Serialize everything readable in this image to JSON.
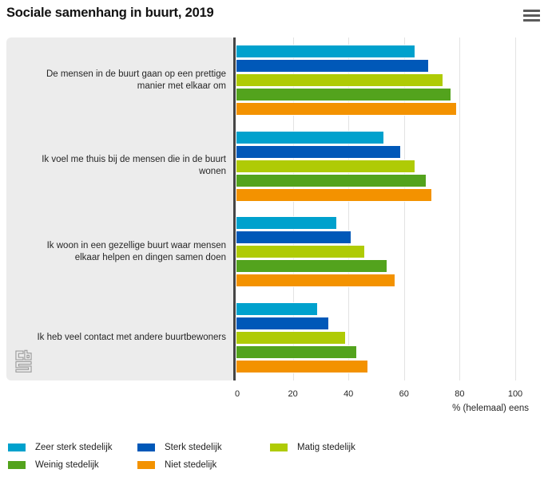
{
  "header": {
    "title": "Sociale samenhang in buurt, 2019",
    "menu_icon": "hamburger-menu-icon"
  },
  "chart_data": {
    "type": "bar",
    "orientation": "horizontal",
    "title": "Sociale samenhang in buurt, 2019",
    "categories": [
      "De mensen in de buurt gaan op een prettige manier met elkaar om",
      "Ik voel me thuis bij de mensen die in de buurt wonen",
      "Ik woon in een gezellige buurt waar mensen elkaar helpen en dingen samen doen",
      "Ik heb veel contact met andere buurtbewoners"
    ],
    "series": [
      {
        "name": "Zeer sterk stedelijk",
        "color": "#00a1cd",
        "values": [
          64,
          53,
          36,
          29
        ]
      },
      {
        "name": "Sterk stedelijk",
        "color": "#0058b8",
        "values": [
          69,
          59,
          41,
          33
        ]
      },
      {
        "name": "Matig stedelijk",
        "color": "#afcb05",
        "values": [
          74,
          64,
          46,
          39
        ]
      },
      {
        "name": "Weinig stedelijk",
        "color": "#53a31d",
        "values": [
          77,
          68,
          54,
          43
        ]
      },
      {
        "name": "Niet stedelijk",
        "color": "#f39200",
        "values": [
          79,
          70,
          57,
          47
        ]
      }
    ],
    "xlabel": "% (helemaal) eens",
    "xlim": [
      0,
      100
    ],
    "x_ticks": [
      0,
      20,
      40,
      60,
      80,
      100
    ],
    "grid": true,
    "legend_position": "bottom",
    "colors": {
      "axis_line": "#454545",
      "gridline": "#e3e3e3",
      "panel_background": "#ececec"
    }
  },
  "logo": {
    "name": "cbs-logo",
    "letters": "cbs"
  }
}
